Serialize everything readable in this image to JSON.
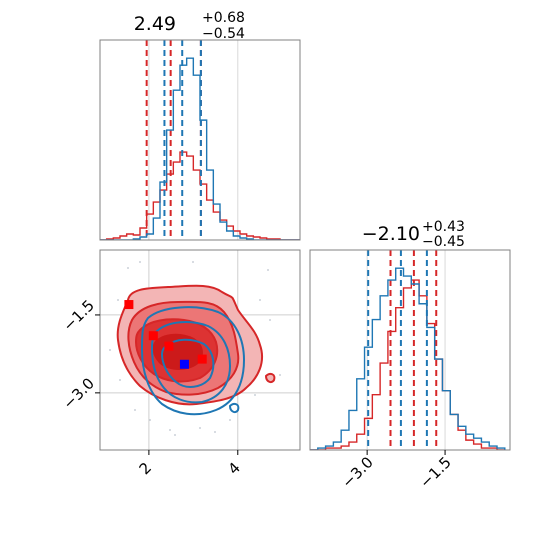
{
  "chart_data": [
    {
      "type": "histogram",
      "panel": "top-left",
      "title_main": "2.49",
      "title_sup": "+0.68",
      "title_sub": "−0.54",
      "xlim": [
        0.9,
        5.4
      ],
      "grid": true,
      "series": [
        {
          "name": "",
          "color": "#d62728",
          "edges": [
            0.9,
            1.05,
            1.2,
            1.35,
            1.5,
            1.65,
            1.8,
            1.95,
            2.1,
            2.25,
            2.4,
            2.55,
            2.7,
            2.85,
            3.0,
            3.15,
            3.3,
            3.45,
            3.6,
            3.75,
            3.9,
            4.05,
            4.2,
            4.35,
            4.5,
            4.65,
            4.8,
            4.95,
            5.1,
            5.25,
            5.4
          ],
          "counts": [
            0,
            1,
            2,
            4,
            6,
            5,
            12,
            26,
            38,
            50,
            66,
            78,
            88,
            84,
            70,
            56,
            40,
            28,
            20,
            14,
            9,
            6,
            4,
            3,
            2,
            1,
            1,
            0,
            0,
            0
          ],
          "quantiles": [
            1.95,
            2.49,
            3.17
          ]
        },
        {
          "name": "",
          "color": "#1f77b4",
          "edges": [
            0.9,
            1.05,
            1.2,
            1.35,
            1.5,
            1.65,
            1.8,
            1.95,
            2.1,
            2.25,
            2.4,
            2.55,
            2.7,
            2.85,
            3.0,
            3.15,
            3.3,
            3.45,
            3.6,
            3.75,
            3.9,
            4.05,
            4.2,
            4.35,
            4.5,
            4.65,
            4.8,
            4.95,
            5.1,
            5.25,
            5.4
          ],
          "counts": [
            0,
            0,
            0,
            0,
            0,
            1,
            3,
            6,
            22,
            58,
            110,
            150,
            175,
            182,
            165,
            120,
            70,
            36,
            18,
            9,
            4,
            2,
            1,
            0,
            0,
            0,
            0,
            0,
            0,
            0
          ],
          "quantiles": [
            2.35,
            2.75,
            3.17
          ]
        }
      ]
    },
    {
      "type": "contour",
      "panel": "bottom-left",
      "xlim": [
        0.9,
        5.4
      ],
      "ylim": [
        -4.1,
        -0.25
      ],
      "xticks": [
        2,
        4
      ],
      "xticklabels": [
        "2",
        "4"
      ],
      "yticks": [
        -1.5,
        -3.0
      ],
      "yticklabels": [
        "−1.5",
        "−3.0"
      ],
      "grid": true,
      "markers": [
        {
          "x": 1.55,
          "y": -1.3,
          "color": "#ff0000"
        },
        {
          "x": 2.1,
          "y": -1.9,
          "color": "#ff0000"
        },
        {
          "x": 2.45,
          "y": -2.1,
          "color": "#ff0000"
        },
        {
          "x": 3.2,
          "y": -2.35,
          "color": "#ff0000"
        },
        {
          "x": 2.8,
          "y": -2.45,
          "color": "#0000ff"
        }
      ]
    },
    {
      "type": "histogram",
      "panel": "bottom-right",
      "title_main": "−2.10",
      "title_sup": "+0.43",
      "title_sub": "−0.45",
      "xlim": [
        -4.1,
        -0.25
      ],
      "xticks": [
        -3.0,
        -1.5
      ],
      "xticklabels": [
        "−3.0",
        "−1.5"
      ],
      "grid": true,
      "series": [
        {
          "name": "",
          "color": "#d62728",
          "edges": [
            -4.1,
            -3.95,
            -3.8,
            -3.65,
            -3.5,
            -3.35,
            -3.2,
            -3.05,
            -2.9,
            -2.75,
            -2.6,
            -2.45,
            -2.3,
            -2.15,
            -2.0,
            -1.85,
            -1.7,
            -1.55,
            -1.4,
            -1.25,
            -1.1,
            -0.95,
            -0.8,
            -0.65,
            -0.5,
            -0.35
          ],
          "counts": [
            0,
            0,
            1,
            1,
            2,
            4,
            8,
            16,
            28,
            44,
            60,
            72,
            82,
            86,
            78,
            64,
            46,
            30,
            18,
            10,
            5,
            3,
            1,
            1,
            0
          ],
          "quantiles": [
            -2.55,
            -2.1,
            -1.67
          ]
        },
        {
          "name": "",
          "color": "#1f77b4",
          "edges": [
            -4.1,
            -3.95,
            -3.8,
            -3.65,
            -3.5,
            -3.35,
            -3.2,
            -3.05,
            -2.9,
            -2.75,
            -2.6,
            -2.45,
            -2.3,
            -2.15,
            -2.0,
            -1.85,
            -1.7,
            -1.55,
            -1.4,
            -1.25,
            -1.1,
            -0.95,
            -0.8,
            -0.65,
            -0.5,
            -0.35
          ],
          "counts": [
            0,
            1,
            2,
            4,
            10,
            20,
            36,
            52,
            66,
            78,
            86,
            92,
            88,
            84,
            74,
            62,
            46,
            30,
            18,
            12,
            8,
            6,
            4,
            2,
            1
          ],
          "quantiles": [
            -2.98,
            -2.35,
            -1.85
          ]
        }
      ]
    }
  ]
}
